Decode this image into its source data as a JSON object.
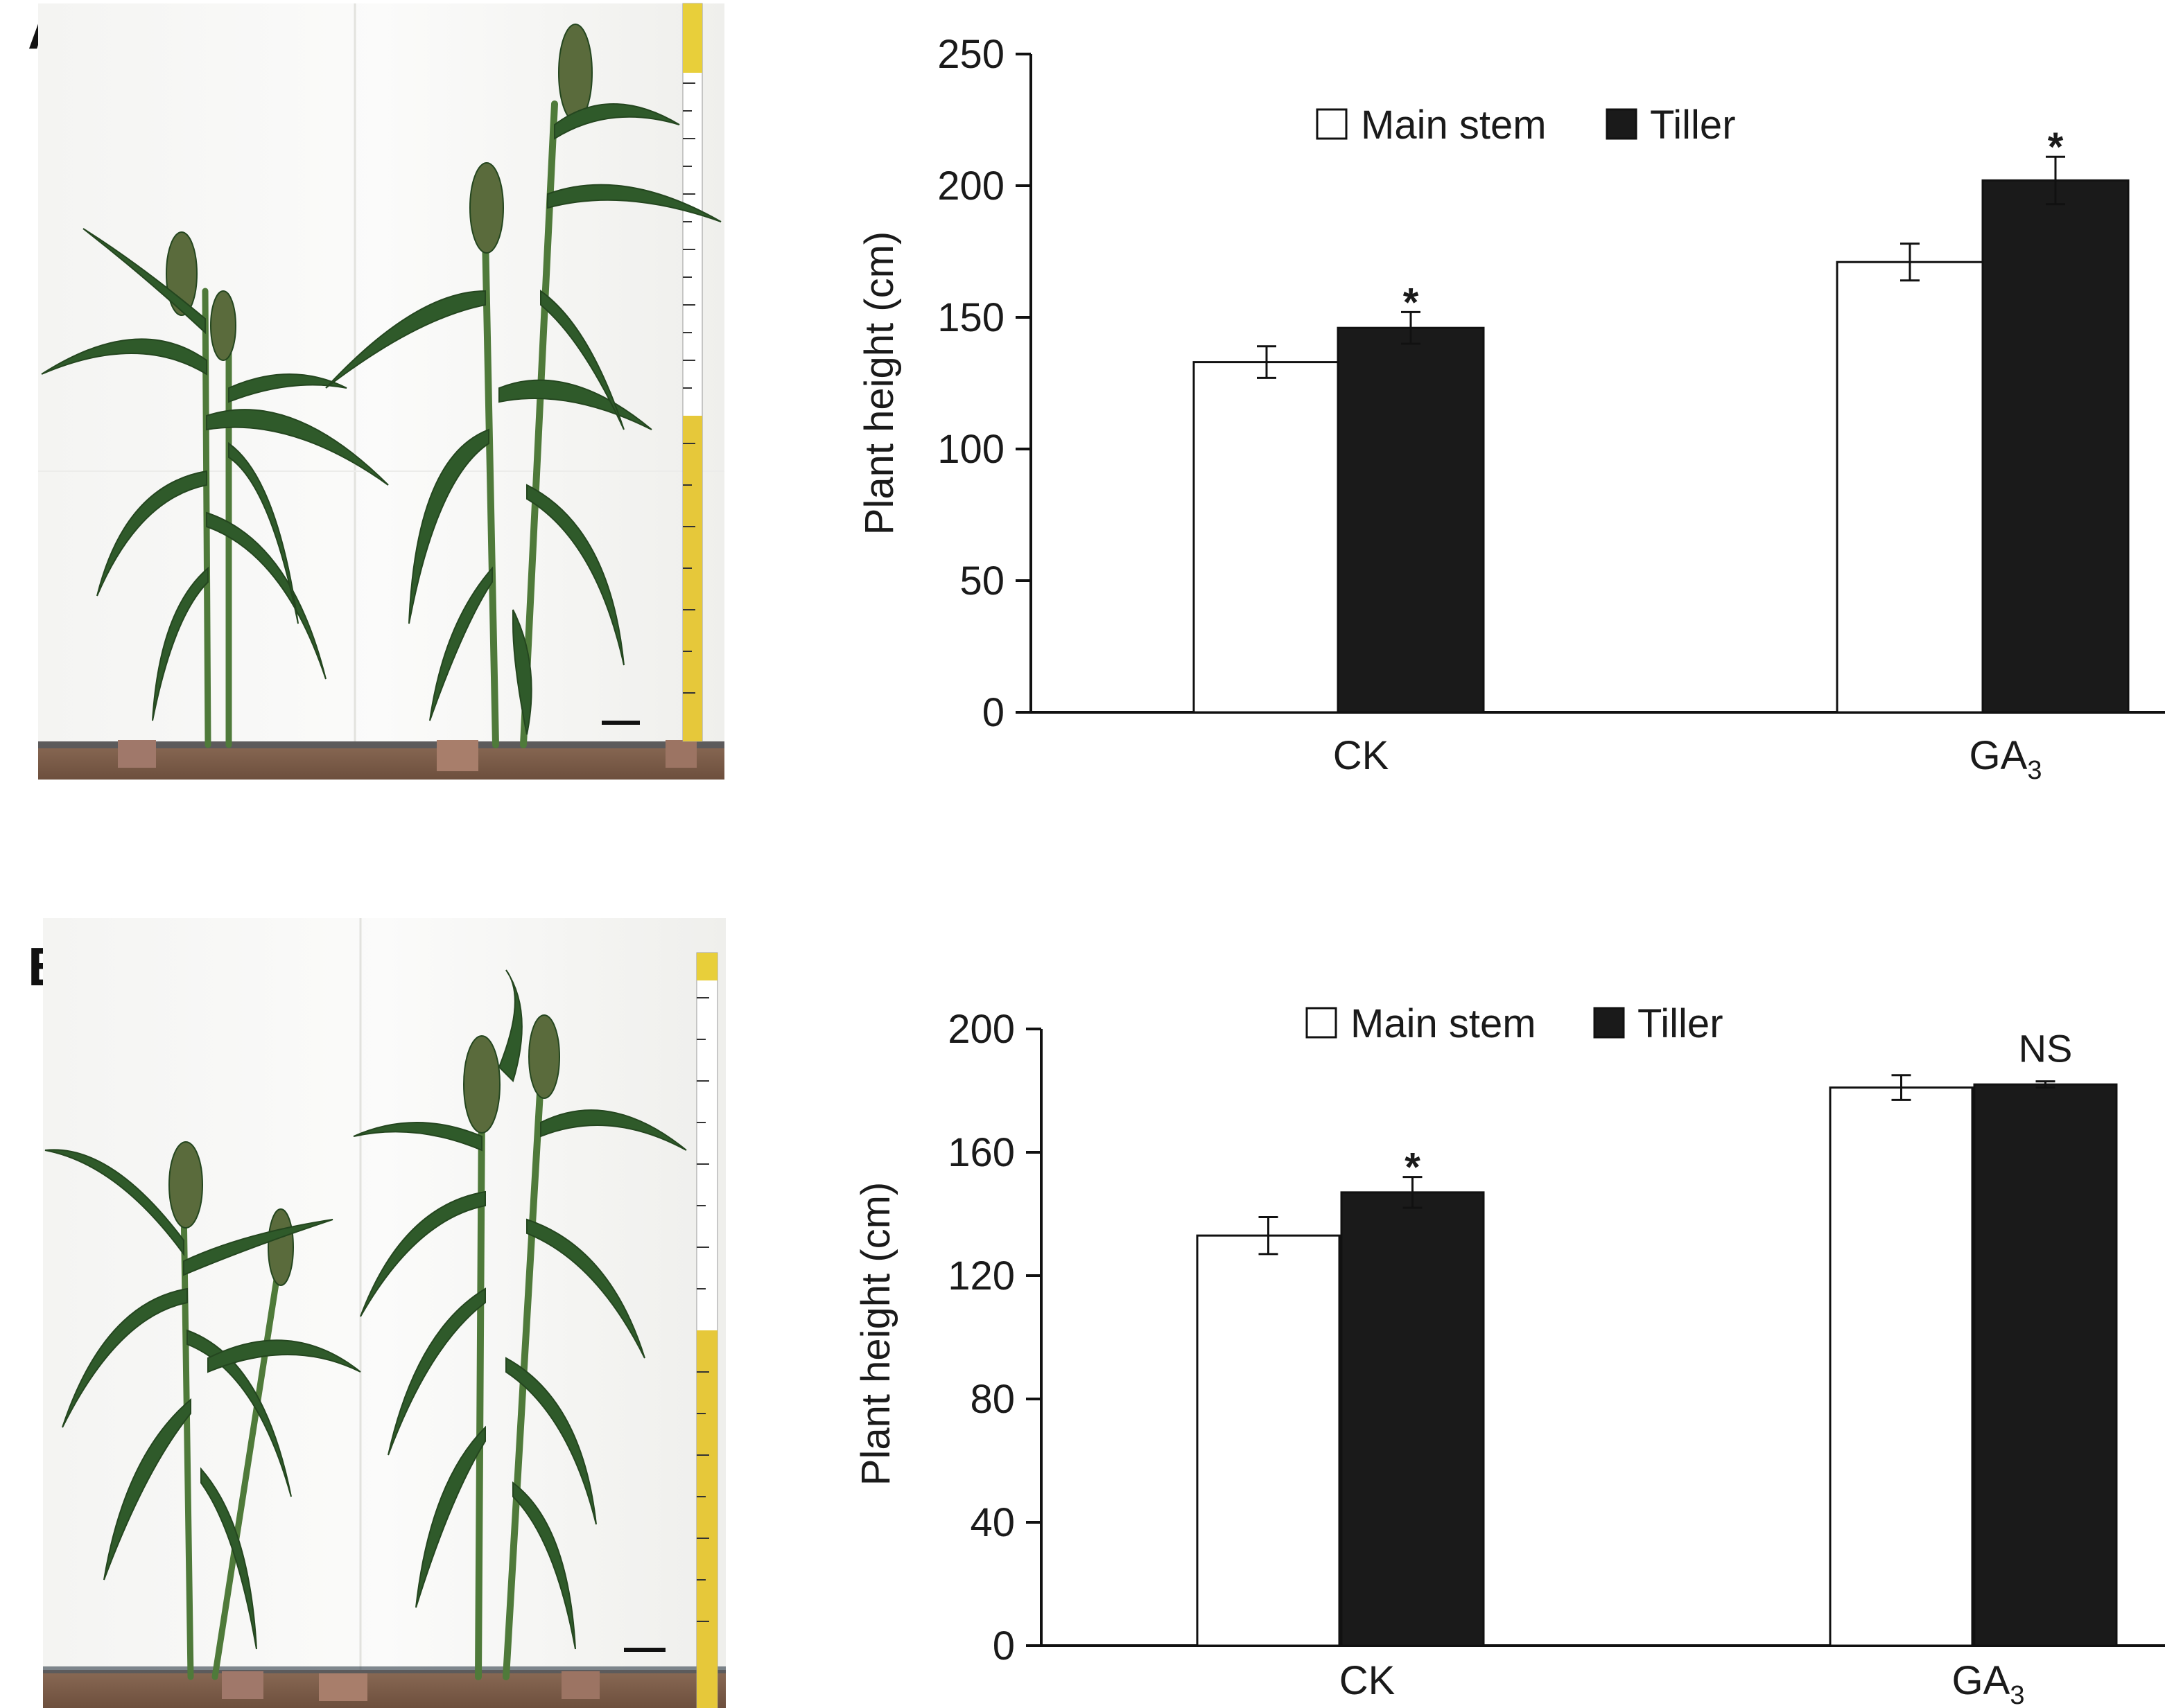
{
  "figure": {
    "panels": [
      {
        "letter": "A"
      },
      {
        "letter": "B"
      }
    ],
    "photo_description_names": [
      "sorghum-plants-photo-a",
      "sorghum-plants-photo-b"
    ]
  },
  "chart_data": [
    {
      "type": "bar",
      "panel": "A",
      "title": "",
      "xlabel": "",
      "ylabel": "Plant height (cm)",
      "ylim": [
        0,
        250
      ],
      "yticks": [
        0,
        50,
        100,
        150,
        200,
        250
      ],
      "categories": [
        "CK",
        "GA3"
      ],
      "category_labels": [
        {
          "main": "CK",
          "sub": ""
        },
        {
          "main": "GA",
          "sub": "3"
        }
      ],
      "series": [
        {
          "name": "Main stem",
          "fill": "#ffffff",
          "values": [
            133,
            171
          ],
          "errors": [
            6,
            7
          ]
        },
        {
          "name": "Tiller",
          "fill": "#1a1a1a",
          "values": [
            146,
            202
          ],
          "errors": [
            6,
            9
          ]
        }
      ],
      "annotations": [
        "*",
        "*"
      ],
      "legend": {
        "position": "top-center",
        "items": [
          "Main stem",
          "Tiller"
        ]
      }
    },
    {
      "type": "bar",
      "panel": "B",
      "title": "",
      "xlabel": "",
      "ylabel": "Plant height (cm)",
      "ylim": [
        0,
        200
      ],
      "yticks": [
        0,
        40,
        80,
        120,
        160,
        200
      ],
      "categories": [
        "CK",
        "GA3"
      ],
      "category_labels": [
        {
          "main": "CK",
          "sub": ""
        },
        {
          "main": "GA",
          "sub": "3"
        }
      ],
      "series": [
        {
          "name": "Main stem",
          "fill": "#ffffff",
          "values": [
            133,
            181
          ],
          "errors": [
            6,
            4
          ]
        },
        {
          "name": "Tiller",
          "fill": "#1a1a1a",
          "values": [
            147,
            182
          ],
          "errors": [
            5,
            1
          ]
        }
      ],
      "annotations": [
        "*",
        "NS"
      ],
      "legend": {
        "position": "top-center",
        "items": [
          "Main stem",
          "Tiller"
        ]
      }
    }
  ]
}
